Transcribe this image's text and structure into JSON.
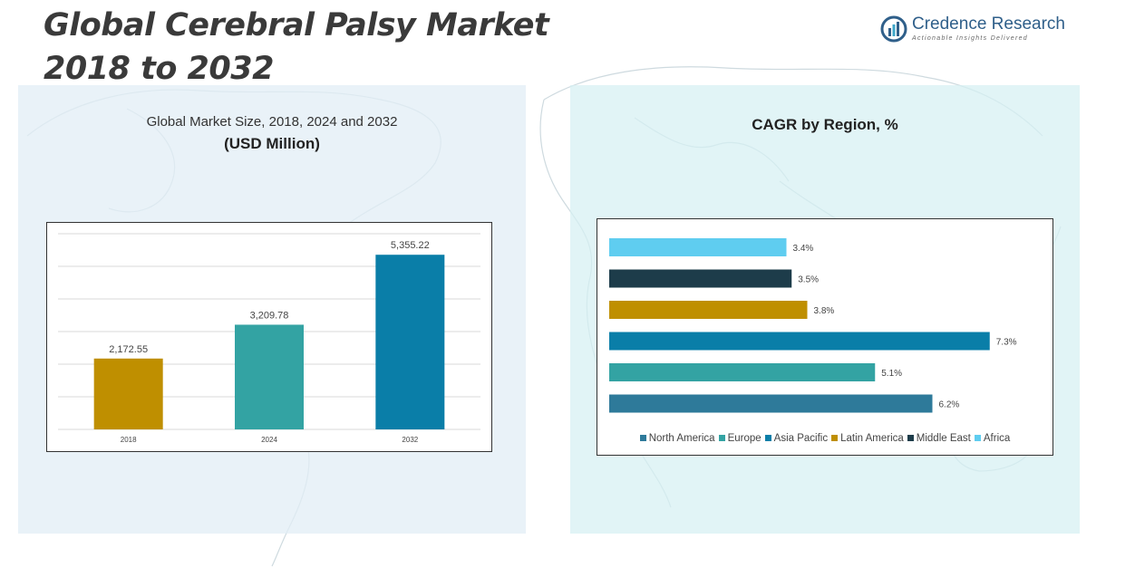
{
  "header": {
    "title_line1": "Global Cerebral Palsy Market",
    "title_line2": "2018 to 2032"
  },
  "logo": {
    "name": "Credence Research",
    "tagline": "Actionable Insights Delivered",
    "icon": "bar-chart-circle-icon"
  },
  "left_panel": {
    "subtitle": "Global Market Size, 2018, 2024 and 2032",
    "unit": "(USD Million)"
  },
  "right_panel": {
    "title": "CAGR by Region, %"
  },
  "chart_data": [
    {
      "type": "bar",
      "categories": [
        "2018",
        "2024",
        "2032"
      ],
      "values": [
        2172.55,
        3209.78,
        5355.22
      ],
      "value_labels": [
        "2,172.55",
        "3,209.78",
        "5,355.22"
      ],
      "colors": [
        "#bf8f00",
        "#33a3a3",
        "#0a7ea8"
      ],
      "ylim": [
        0,
        6000
      ],
      "grid": true,
      "title": "Global Market Size, 2018, 2024 and 2032",
      "ylabel": "(USD Million)"
    },
    {
      "type": "bar",
      "orientation": "horizontal",
      "title": "CAGR by Region, %",
      "categories": [
        "North America",
        "Europe",
        "Asia Pacific",
        "Latin America",
        "Middle East",
        "Africa"
      ],
      "values": [
        6.2,
        5.1,
        7.3,
        3.8,
        3.5,
        3.4
      ],
      "value_labels": [
        "6.2%",
        "5.1%",
        "7.3%",
        "3.8%",
        "3.5%",
        "3.4%"
      ],
      "colors": [
        "#2e7a9a",
        "#33a3a3",
        "#0a7ea8",
        "#bf8f00",
        "#1d3c4a",
        "#5fcdf0"
      ],
      "xlim": [
        0,
        7.6
      ],
      "legend": "bottom"
    }
  ]
}
